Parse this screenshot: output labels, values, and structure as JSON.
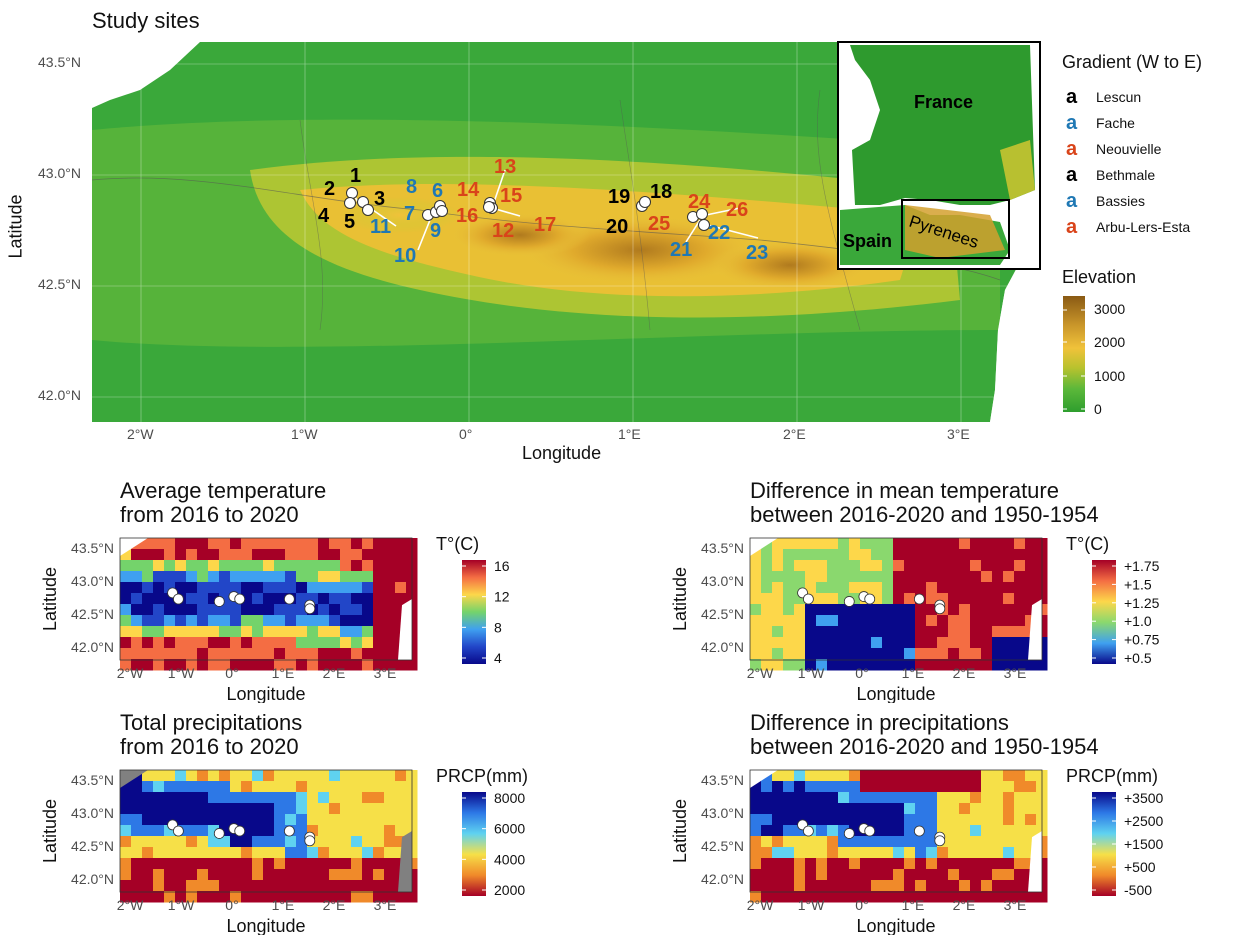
{
  "main_map": {
    "title": "Study sites",
    "xlabel": "Longitude",
    "ylabel": "Latitude",
    "x_ticks": [
      "2°W",
      "1°W",
      "0°",
      "1°E",
      "2°E",
      "3°E"
    ],
    "y_ticks": [
      "43.5°N",
      "43.0°N",
      "42.5°N",
      "42.0°N"
    ],
    "inset": {
      "labels": [
        "France",
        "Spain",
        "Pyrenees"
      ]
    },
    "gradient_legend": {
      "title": "Gradient (W to E)",
      "items": [
        {
          "key": "a",
          "label": "Lescun",
          "color": "#000000"
        },
        {
          "key": "a",
          "label": "Fache",
          "color": "#1f78b4"
        },
        {
          "key": "a",
          "label": "Neouvielle",
          "color": "#d9441a"
        },
        {
          "key": "a",
          "label": "Bethmale",
          "color": "#000000"
        },
        {
          "key": "a",
          "label": "Bassies",
          "color": "#1f78b4"
        },
        {
          "key": "a",
          "label": "Arbu-Lers-Esta",
          "color": "#d9441a"
        }
      ]
    },
    "elevation_legend": {
      "title": "Elevation",
      "labels": [
        "3000",
        "2000",
        "1000",
        "0"
      ],
      "colors": [
        "#8a5a14",
        "#c9962a",
        "#f0c23a",
        "#b8c22e",
        "#5cb83a",
        "#2e9e2e"
      ]
    },
    "site_labels": [
      {
        "text": "1",
        "color": "#000000"
      },
      {
        "text": "2",
        "color": "#000000"
      },
      {
        "text": "3",
        "color": "#000000"
      },
      {
        "text": "4",
        "color": "#000000"
      },
      {
        "text": "5",
        "color": "#000000"
      },
      {
        "text": "6",
        "color": "#1f78b4"
      },
      {
        "text": "7",
        "color": "#1f78b4"
      },
      {
        "text": "8",
        "color": "#1f78b4"
      },
      {
        "text": "9",
        "color": "#1f78b4"
      },
      {
        "text": "10",
        "color": "#1f78b4"
      },
      {
        "text": "11",
        "color": "#1f78b4"
      },
      {
        "text": "12",
        "color": "#d9441a"
      },
      {
        "text": "13",
        "color": "#d9441a"
      },
      {
        "text": "14",
        "color": "#d9441a"
      },
      {
        "text": "15",
        "color": "#d9441a"
      },
      {
        "text": "16",
        "color": "#d9441a"
      },
      {
        "text": "17",
        "color": "#d9441a"
      },
      {
        "text": "18",
        "color": "#000000"
      },
      {
        "text": "19",
        "color": "#000000"
      },
      {
        "text": "20",
        "color": "#000000"
      },
      {
        "text": "21",
        "color": "#1f78b4"
      },
      {
        "text": "22",
        "color": "#1f78b4"
      },
      {
        "text": "23",
        "color": "#1f78b4"
      },
      {
        "text": "24",
        "color": "#d9441a"
      },
      {
        "text": "25",
        "color": "#d9441a"
      },
      {
        "text": "26",
        "color": "#d9441a"
      }
    ]
  },
  "panels": [
    {
      "id": "avg-temp",
      "title_line1": "Average temperature",
      "title_line2": "from 2016 to 2020",
      "legend_title": "T°(C)",
      "legend_labels": [
        "16",
        "12",
        "8",
        "4"
      ],
      "legend_colors": [
        "#a50026",
        "#f46d43",
        "#fdd74a",
        "#74d36b",
        "#3fa0f0",
        "#2246c8",
        "#08088a"
      ],
      "xlabel": "Longitude",
      "ylabel": "Latitude"
    },
    {
      "id": "diff-temp",
      "title_line1": "Difference in mean temperature",
      "title_line2": "between 2016-2020 and 1950-1954",
      "legend_title": "T°(C)",
      "legend_labels": [
        "+1.75",
        "+1.5",
        "+1.25",
        "+1.0",
        "+0.75",
        "+0.5"
      ],
      "legend_colors": [
        "#a50026",
        "#f46d43",
        "#fdd74a",
        "#8ad86e",
        "#3fa0f0",
        "#08088a"
      ],
      "xlabel": "Longitude",
      "ylabel": "Latitude"
    },
    {
      "id": "tot-prcp",
      "title_line1": "Total precipitations",
      "title_line2": "from 2016 to 2020",
      "legend_title": "PRCP(mm)",
      "legend_labels": [
        "8000",
        "6000",
        "4000",
        "2000"
      ],
      "legend_colors": [
        "#08088a",
        "#2d78e6",
        "#5fd2f0",
        "#f6e048",
        "#f08a2a",
        "#a50026"
      ],
      "xlabel": "Longitude",
      "ylabel": "Latitude"
    },
    {
      "id": "diff-prcp",
      "title_line1": "Difference in precipitations",
      "title_line2": "between 2016-2020 and 1950-1954",
      "legend_title": "PRCP(mm)",
      "legend_labels": [
        "+3500",
        "+2500",
        "+1500",
        "+500",
        "-500"
      ],
      "legend_colors": [
        "#08088a",
        "#2d78e6",
        "#5fd2f0",
        "#f6e048",
        "#f08a2a",
        "#a50026"
      ],
      "xlabel": "Longitude",
      "ylabel": "Latitude"
    }
  ],
  "small_x_ticks": [
    "2°W",
    "1°W",
    "0°",
    "1°E",
    "2°E",
    "3°E"
  ],
  "small_y_ticks": [
    "43.5°N",
    "43.0°N",
    "42.5°N",
    "42.0°N"
  ]
}
